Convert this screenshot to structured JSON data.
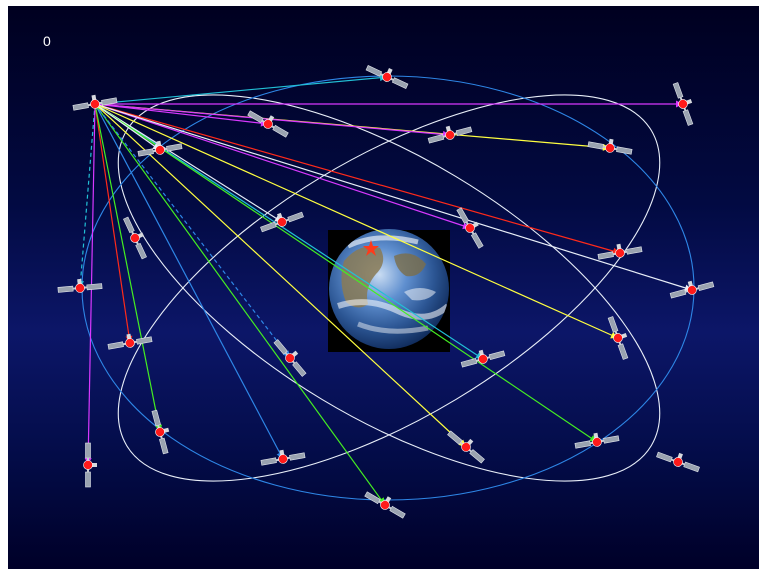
{
  "frame_counter": "0",
  "colors": {
    "background_top": "#000022",
    "background_mid": "#0a1260",
    "background_bottom": "#000030",
    "orbit_white": "#e8eef8",
    "orbit_blue": "#2e86e6",
    "satellite_node": "#ff1a1a",
    "link_palette": [
      "#d838ff",
      "#22c0d6",
      "#ffff40",
      "#ff2a1a",
      "#44ee22",
      "#2e86e6",
      "#e8eef8"
    ]
  },
  "icons": {
    "satellite": "satellite-icon",
    "earth": "earth-globe-icon",
    "ground_station": "red-star-icon"
  },
  "network": {
    "source_satellite": "sat-top-left",
    "satellite_count": 24,
    "link_count": 21,
    "dashed_link_count": 2
  }
}
